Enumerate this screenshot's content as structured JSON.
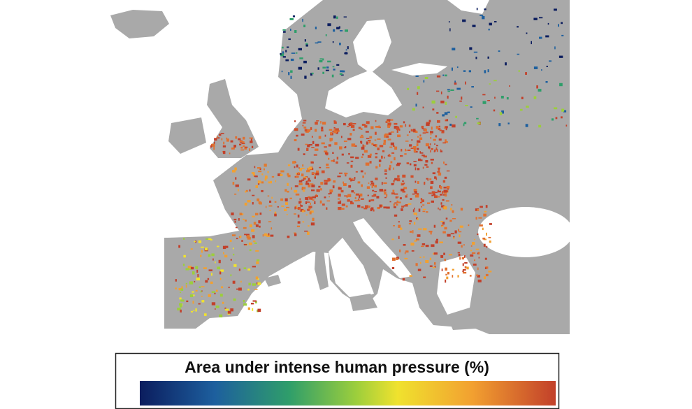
{
  "legend": {
    "title": "Area under intense human pressure (%)"
  }
}
